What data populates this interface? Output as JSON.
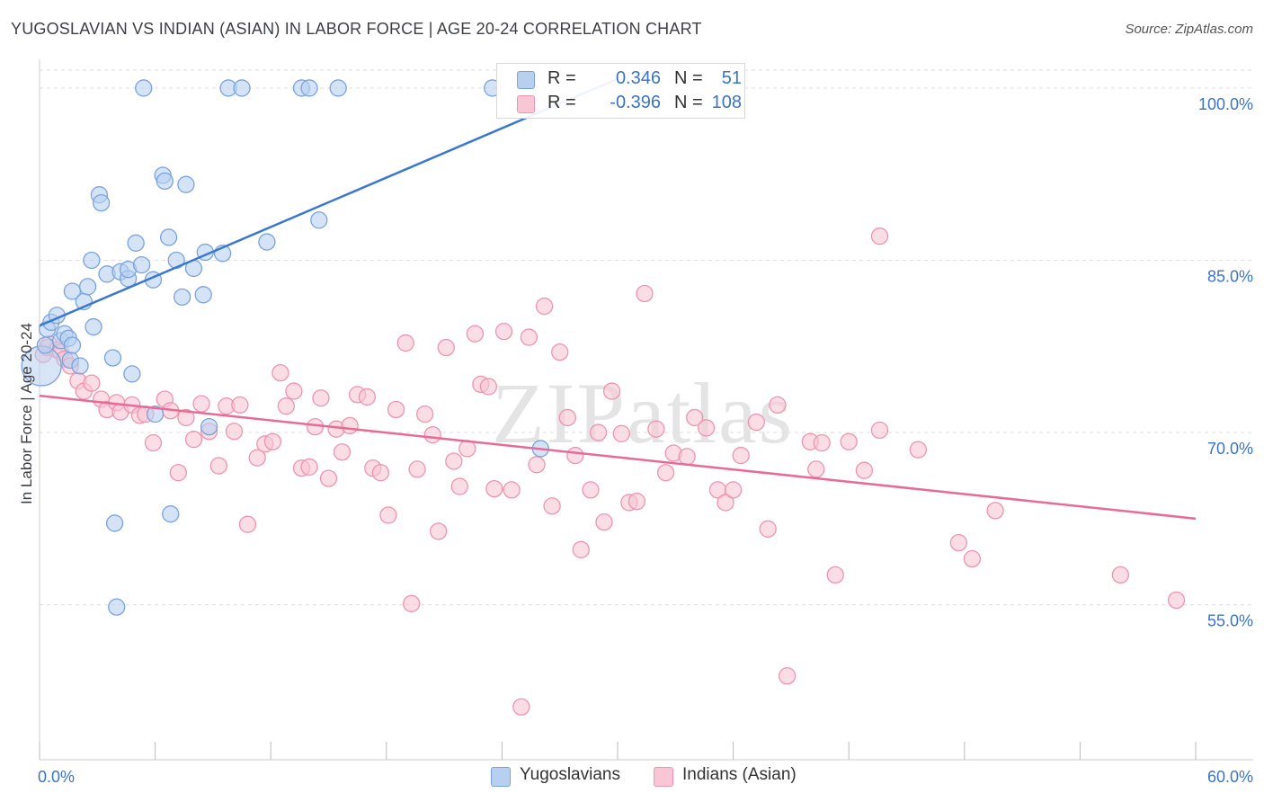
{
  "title": "YUGOSLAVIAN VS INDIAN (ASIAN) IN LABOR FORCE | AGE 20-24 CORRELATION CHART",
  "source": "Source: ZipAtlas.com",
  "watermark": "ZIPatlas",
  "legend": {
    "r_label": "R =",
    "n_label": "N =",
    "series": [
      {
        "name": "Yugoslavians",
        "r": "0.346",
        "n": "51"
      },
      {
        "name": "Indians (Asian)",
        "r": "-0.396",
        "n": "108"
      }
    ]
  },
  "colors": {
    "blue_fill": "#b8d0f0",
    "blue_stroke": "#7aa3de",
    "blue_line": "#3a78d0",
    "pink_fill": "#f8c6d4",
    "pink_stroke": "#ee94b0",
    "pink_line": "#e86a96",
    "axis_text": "#3b73c9",
    "grid": "#dddddd"
  },
  "chart_data": {
    "type": "scatter",
    "title": "YUGOSLAVIAN VS INDIAN (ASIAN) IN LABOR FORCE | AGE 20-24 CORRELATION CHART",
    "xlabel": "",
    "ylabel": "In Labor Force | Age 20-24",
    "xlim": [
      0,
      60
    ],
    "ylim": [
      41.5,
      102.5
    ],
    "x_tick_labels": [
      {
        "value": 0,
        "label": "0.0%"
      },
      {
        "value": 60,
        "label": "60.0%"
      }
    ],
    "y_tick_labels": [
      {
        "value": 100,
        "label": "100.0%"
      },
      {
        "value": 85,
        "label": "85.0%"
      },
      {
        "value": 70,
        "label": "70.0%"
      },
      {
        "value": 55,
        "label": "55.0%"
      }
    ],
    "series": [
      {
        "name": "Yugoslavians",
        "trend": {
          "x": [
            0,
            30
          ],
          "y": [
            79.3,
            100.8
          ]
        },
        "points": [
          [
            0.1,
            75.8
          ],
          [
            0.3,
            77.6
          ],
          [
            0.4,
            79.0
          ],
          [
            0.6,
            79.6
          ],
          [
            0.9,
            80.2
          ],
          [
            1.1,
            78.0
          ],
          [
            1.3,
            78.6
          ],
          [
            1.6,
            76.3
          ],
          [
            1.5,
            78.2
          ],
          [
            1.7,
            77.6
          ],
          [
            2.1,
            75.8
          ],
          [
            1.7,
            82.3
          ],
          [
            2.3,
            81.4
          ],
          [
            2.5,
            82.7
          ],
          [
            2.7,
            85.0
          ],
          [
            2.8,
            79.2
          ],
          [
            3.1,
            90.7
          ],
          [
            3.2,
            90.0
          ],
          [
            3.5,
            83.8
          ],
          [
            3.8,
            76.5
          ],
          [
            3.9,
            62.1
          ],
          [
            4.0,
            54.8
          ],
          [
            4.2,
            84.0
          ],
          [
            4.6,
            83.4
          ],
          [
            4.6,
            84.2
          ],
          [
            4.8,
            75.1
          ],
          [
            5.0,
            86.5
          ],
          [
            5.3,
            84.6
          ],
          [
            5.4,
            100.0
          ],
          [
            5.9,
            83.3
          ],
          [
            6.0,
            71.6
          ],
          [
            6.4,
            92.4
          ],
          [
            6.5,
            91.9
          ],
          [
            6.7,
            87.0
          ],
          [
            6.8,
            62.9
          ],
          [
            7.1,
            85.0
          ],
          [
            7.4,
            81.8
          ],
          [
            7.6,
            91.6
          ],
          [
            8.0,
            84.3
          ],
          [
            8.5,
            82.0
          ],
          [
            8.6,
            85.7
          ],
          [
            8.8,
            70.5
          ],
          [
            9.5,
            85.6
          ],
          [
            9.8,
            100.0
          ],
          [
            10.5,
            100.0
          ],
          [
            11.8,
            86.6
          ],
          [
            13.6,
            100.0
          ],
          [
            14.0,
            100.0
          ],
          [
            14.5,
            88.5
          ],
          [
            15.5,
            100.0
          ],
          [
            23.5,
            100.0
          ],
          [
            26.0,
            68.6
          ]
        ]
      },
      {
        "name": "Indians (Asian)",
        "trend": {
          "x": [
            0,
            60
          ],
          "y": [
            73.2,
            62.5
          ]
        },
        "points": [
          [
            0.2,
            76.8
          ],
          [
            0.4,
            77.4
          ],
          [
            0.5,
            77.7
          ],
          [
            0.9,
            77.2
          ],
          [
            1.1,
            77.0
          ],
          [
            1.3,
            76.4
          ],
          [
            1.6,
            75.8
          ],
          [
            2.0,
            74.5
          ],
          [
            2.3,
            73.6
          ],
          [
            2.7,
            74.3
          ],
          [
            3.2,
            72.9
          ],
          [
            3.5,
            72.0
          ],
          [
            4.0,
            72.6
          ],
          [
            4.2,
            71.8
          ],
          [
            4.8,
            72.4
          ],
          [
            5.2,
            71.5
          ],
          [
            5.5,
            71.6
          ],
          [
            5.9,
            69.1
          ],
          [
            6.5,
            72.9
          ],
          [
            6.8,
            71.9
          ],
          [
            7.2,
            66.5
          ],
          [
            7.6,
            71.3
          ],
          [
            8.0,
            69.4
          ],
          [
            8.4,
            72.5
          ],
          [
            8.8,
            70.1
          ],
          [
            9.3,
            67.1
          ],
          [
            9.7,
            72.3
          ],
          [
            10.1,
            70.1
          ],
          [
            10.4,
            72.4
          ],
          [
            10.8,
            62.0
          ],
          [
            11.3,
            67.8
          ],
          [
            11.7,
            69.0
          ],
          [
            12.1,
            69.2
          ],
          [
            12.5,
            75.2
          ],
          [
            12.8,
            72.3
          ],
          [
            13.2,
            73.6
          ],
          [
            13.6,
            66.9
          ],
          [
            14.0,
            67.0
          ],
          [
            14.3,
            70.5
          ],
          [
            14.6,
            73.0
          ],
          [
            15.0,
            66.0
          ],
          [
            15.4,
            70.3
          ],
          [
            15.7,
            68.3
          ],
          [
            16.1,
            70.6
          ],
          [
            16.5,
            73.3
          ],
          [
            17.0,
            73.1
          ],
          [
            17.3,
            66.9
          ],
          [
            17.7,
            66.5
          ],
          [
            18.1,
            62.8
          ],
          [
            18.5,
            72.0
          ],
          [
            19.0,
            77.8
          ],
          [
            19.3,
            55.1
          ],
          [
            19.6,
            66.8
          ],
          [
            20.0,
            71.6
          ],
          [
            20.4,
            69.8
          ],
          [
            20.7,
            61.4
          ],
          [
            21.1,
            77.4
          ],
          [
            21.5,
            67.5
          ],
          [
            21.8,
            65.3
          ],
          [
            22.2,
            68.6
          ],
          [
            22.6,
            78.6
          ],
          [
            22.9,
            74.2
          ],
          [
            23.3,
            74.0
          ],
          [
            23.6,
            65.1
          ],
          [
            24.1,
            78.8
          ],
          [
            24.5,
            65.0
          ],
          [
            25.0,
            46.1
          ],
          [
            25.4,
            78.3
          ],
          [
            25.8,
            67.2
          ],
          [
            26.2,
            81.0
          ],
          [
            26.6,
            63.6
          ],
          [
            27.0,
            77.0
          ],
          [
            27.4,
            71.3
          ],
          [
            27.8,
            68.0
          ],
          [
            28.1,
            59.8
          ],
          [
            28.6,
            65.0
          ],
          [
            29.0,
            70.0
          ],
          [
            29.3,
            62.2
          ],
          [
            29.7,
            73.6
          ],
          [
            30.2,
            69.9
          ],
          [
            30.6,
            63.9
          ],
          [
            31.0,
            64.0
          ],
          [
            31.4,
            82.1
          ],
          [
            32.0,
            70.3
          ],
          [
            32.5,
            66.5
          ],
          [
            32.9,
            68.2
          ],
          [
            33.6,
            67.9
          ],
          [
            34.0,
            71.3
          ],
          [
            34.6,
            70.4
          ],
          [
            35.2,
            65.0
          ],
          [
            35.6,
            63.9
          ],
          [
            36.0,
            65.0
          ],
          [
            36.4,
            68.0
          ],
          [
            37.2,
            70.9
          ],
          [
            37.8,
            61.6
          ],
          [
            38.3,
            72.4
          ],
          [
            38.8,
            48.8
          ],
          [
            40.0,
            69.2
          ],
          [
            40.3,
            66.8
          ],
          [
            40.6,
            69.1
          ],
          [
            41.3,
            57.6
          ],
          [
            42.0,
            69.2
          ],
          [
            42.8,
            66.7
          ],
          [
            43.6,
            70.2
          ],
          [
            43.6,
            87.1
          ],
          [
            45.6,
            68.5
          ],
          [
            47.7,
            60.4
          ],
          [
            48.4,
            59.0
          ],
          [
            49.6,
            63.2
          ],
          [
            56.1,
            57.6
          ],
          [
            59.0,
            55.4
          ]
        ]
      }
    ]
  }
}
